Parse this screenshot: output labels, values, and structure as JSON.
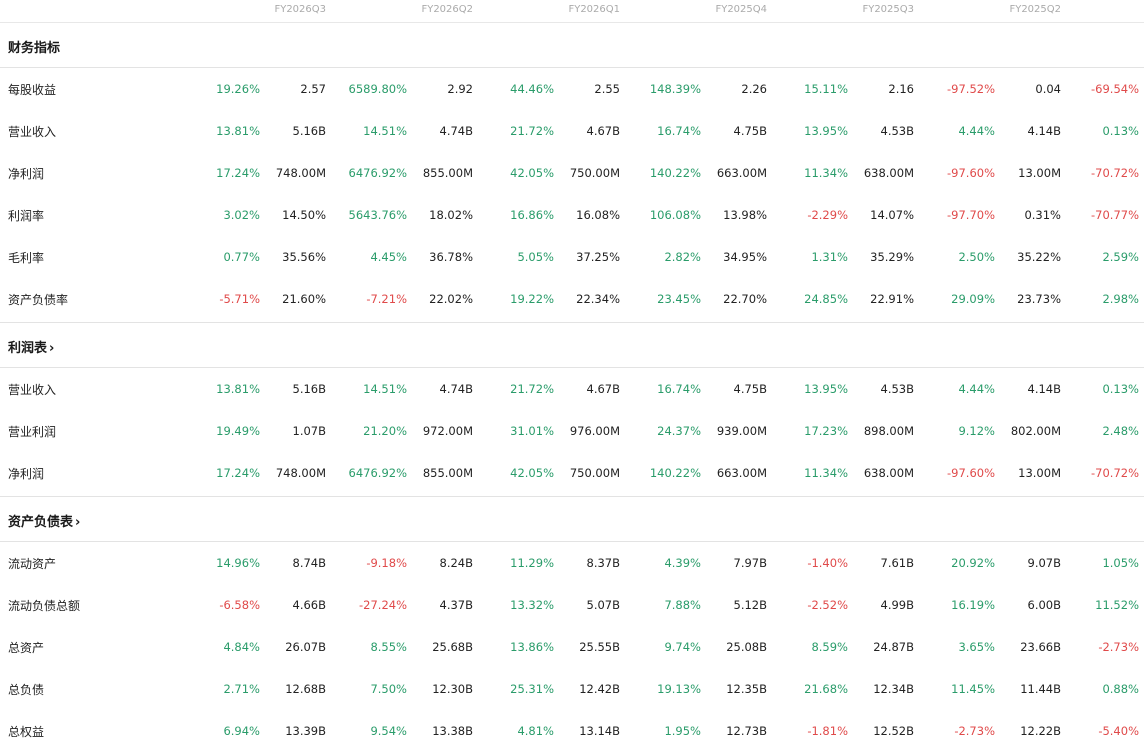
{
  "periods": [
    "FY2026Q3",
    "FY2026Q2",
    "FY2026Q1",
    "FY2025Q4",
    "FY2025Q3",
    "FY2025Q2"
  ],
  "colors": {
    "positive": "#2a9c6a",
    "negative": "#e04a4a"
  },
  "sections": [
    {
      "title": "财务指标",
      "link": false,
      "rows": [
        {
          "label": "每股收益",
          "cells": [
            [
              "19.26%",
              "2.57"
            ],
            [
              "6589.80%",
              "2.92"
            ],
            [
              "44.46%",
              "2.55"
            ],
            [
              "148.39%",
              "2.26"
            ],
            [
              "15.11%",
              "2.16"
            ],
            [
              "-97.52%",
              "0.04"
            ]
          ],
          "tail": "-69.54%"
        },
        {
          "label": "营业收入",
          "cells": [
            [
              "13.81%",
              "5.16B"
            ],
            [
              "14.51%",
              "4.74B"
            ],
            [
              "21.72%",
              "4.67B"
            ],
            [
              "16.74%",
              "4.75B"
            ],
            [
              "13.95%",
              "4.53B"
            ],
            [
              "4.44%",
              "4.14B"
            ]
          ],
          "tail": "0.13%"
        },
        {
          "label": "净利润",
          "cells": [
            [
              "17.24%",
              "748.00M"
            ],
            [
              "6476.92%",
              "855.00M"
            ],
            [
              "42.05%",
              "750.00M"
            ],
            [
              "140.22%",
              "663.00M"
            ],
            [
              "11.34%",
              "638.00M"
            ],
            [
              "-97.60%",
              "13.00M"
            ]
          ],
          "tail": "-70.72%"
        },
        {
          "label": "利润率",
          "cells": [
            [
              "3.02%",
              "14.50%"
            ],
            [
              "5643.76%",
              "18.02%"
            ],
            [
              "16.86%",
              "16.08%"
            ],
            [
              "106.08%",
              "13.98%"
            ],
            [
              "-2.29%",
              "14.07%"
            ],
            [
              "-97.70%",
              "0.31%"
            ]
          ],
          "tail": "-70.77%"
        },
        {
          "label": "毛利率",
          "cells": [
            [
              "0.77%",
              "35.56%"
            ],
            [
              "4.45%",
              "36.78%"
            ],
            [
              "5.05%",
              "37.25%"
            ],
            [
              "2.82%",
              "34.95%"
            ],
            [
              "1.31%",
              "35.29%"
            ],
            [
              "2.50%",
              "35.22%"
            ]
          ],
          "tail": "2.59%"
        },
        {
          "label": "资产负债率",
          "cells": [
            [
              "-5.71%",
              "21.60%"
            ],
            [
              "-7.21%",
              "22.02%"
            ],
            [
              "19.22%",
              "22.34%"
            ],
            [
              "23.45%",
              "22.70%"
            ],
            [
              "24.85%",
              "22.91%"
            ],
            [
              "29.09%",
              "23.73%"
            ]
          ],
          "tail": "2.98%"
        }
      ]
    },
    {
      "title": "利润表",
      "link": true,
      "rows": [
        {
          "label": "营业收入",
          "cells": [
            [
              "13.81%",
              "5.16B"
            ],
            [
              "14.51%",
              "4.74B"
            ],
            [
              "21.72%",
              "4.67B"
            ],
            [
              "16.74%",
              "4.75B"
            ],
            [
              "13.95%",
              "4.53B"
            ],
            [
              "4.44%",
              "4.14B"
            ]
          ],
          "tail": "0.13%"
        },
        {
          "label": "营业利润",
          "cells": [
            [
              "19.49%",
              "1.07B"
            ],
            [
              "21.20%",
              "972.00M"
            ],
            [
              "31.01%",
              "976.00M"
            ],
            [
              "24.37%",
              "939.00M"
            ],
            [
              "17.23%",
              "898.00M"
            ],
            [
              "9.12%",
              "802.00M"
            ]
          ],
          "tail": "2.48%"
        },
        {
          "label": "净利润",
          "cells": [
            [
              "17.24%",
              "748.00M"
            ],
            [
              "6476.92%",
              "855.00M"
            ],
            [
              "42.05%",
              "750.00M"
            ],
            [
              "140.22%",
              "663.00M"
            ],
            [
              "11.34%",
              "638.00M"
            ],
            [
              "-97.60%",
              "13.00M"
            ]
          ],
          "tail": "-70.72%"
        }
      ]
    },
    {
      "title": "资产负债表",
      "link": true,
      "rows": [
        {
          "label": "流动资产",
          "cells": [
            [
              "14.96%",
              "8.74B"
            ],
            [
              "-9.18%",
              "8.24B"
            ],
            [
              "11.29%",
              "8.37B"
            ],
            [
              "4.39%",
              "7.97B"
            ],
            [
              "-1.40%",
              "7.61B"
            ],
            [
              "20.92%",
              "9.07B"
            ]
          ],
          "tail": "1.05%"
        },
        {
          "label": "流动负债总额",
          "cells": [
            [
              "-6.58%",
              "4.66B"
            ],
            [
              "-27.24%",
              "4.37B"
            ],
            [
              "13.32%",
              "5.07B"
            ],
            [
              "7.88%",
              "5.12B"
            ],
            [
              "-2.52%",
              "4.99B"
            ],
            [
              "16.19%",
              "6.00B"
            ]
          ],
          "tail": "11.52%"
        },
        {
          "label": "总资产",
          "cells": [
            [
              "4.84%",
              "26.07B"
            ],
            [
              "8.55%",
              "25.68B"
            ],
            [
              "13.86%",
              "25.55B"
            ],
            [
              "9.74%",
              "25.08B"
            ],
            [
              "8.59%",
              "24.87B"
            ],
            [
              "3.65%",
              "23.66B"
            ]
          ],
          "tail": "-2.73%"
        },
        {
          "label": "总负债",
          "cells": [
            [
              "2.71%",
              "12.68B"
            ],
            [
              "7.50%",
              "12.30B"
            ],
            [
              "25.31%",
              "12.42B"
            ],
            [
              "19.13%",
              "12.35B"
            ],
            [
              "21.68%",
              "12.34B"
            ],
            [
              "11.45%",
              "11.44B"
            ]
          ],
          "tail": "0.88%"
        },
        {
          "label": "总权益",
          "cells": [
            [
              "6.94%",
              "13.39B"
            ],
            [
              "9.54%",
              "13.38B"
            ],
            [
              "4.81%",
              "13.14B"
            ],
            [
              "1.95%",
              "12.73B"
            ],
            [
              "-1.81%",
              "12.52B"
            ],
            [
              "-2.73%",
              "12.22B"
            ]
          ],
          "tail": "-5.40%"
        }
      ]
    }
  ]
}
